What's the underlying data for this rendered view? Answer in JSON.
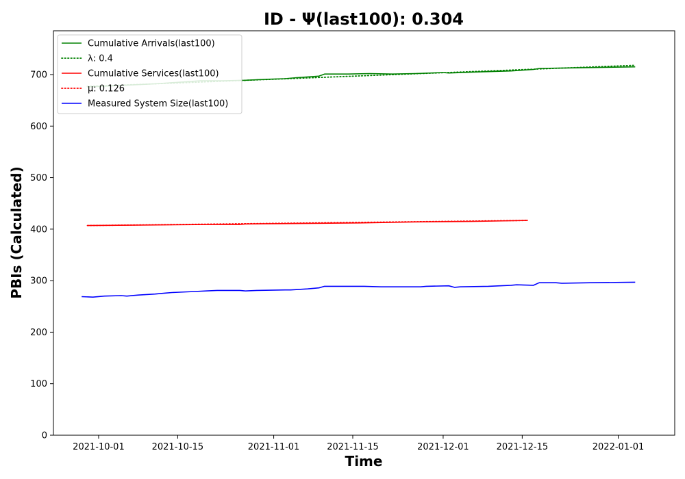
{
  "chart_data": {
    "type": "line",
    "title": "ID -  Ψ(last100): 0.304",
    "xlabel": "Time",
    "ylabel": "PBIs (Calculated)",
    "xlim": [
      "2021-09-23",
      "2022-01-11"
    ],
    "ylim": [
      0,
      785
    ],
    "x_ticks": [
      "2021-10-01",
      "2021-10-15",
      "2021-11-01",
      "2021-11-15",
      "2021-12-01",
      "2021-12-15",
      "2022-01-01"
    ],
    "y_ticks": [
      0,
      100,
      200,
      300,
      400,
      500,
      600,
      700
    ],
    "grid": false,
    "legend_position": "top-left",
    "series": [
      {
        "name": "Cumulative Arrivals(last100)",
        "color": "#008000",
        "style": "solid",
        "x": [
          "2021-09-29",
          "2021-10-03",
          "2021-10-07",
          "2021-10-11",
          "2021-10-15",
          "2021-10-19",
          "2021-10-23",
          "2021-10-27",
          "2021-10-31",
          "2021-11-03",
          "2021-11-05",
          "2021-11-09",
          "2021-11-10",
          "2021-11-14",
          "2021-11-18",
          "2021-11-22",
          "2021-11-26",
          "2021-12-01",
          "2021-12-02",
          "2021-12-07",
          "2021-12-13",
          "2021-12-17",
          "2021-12-18",
          "2021-12-24",
          "2022-01-04"
        ],
        "values": [
          676,
          678,
          680,
          682,
          685,
          688,
          688,
          689,
          691,
          692,
          694,
          697,
          701,
          701,
          702,
          701,
          702,
          704,
          703,
          705,
          707,
          710,
          712,
          713,
          715
        ]
      },
      {
        "name": "λ: 0.4",
        "color": "#008000",
        "style": "dotted",
        "x": [
          "2021-09-29",
          "2022-01-04"
        ],
        "values": [
          677,
          718
        ]
      },
      {
        "name": "Cumulative Services(last100)",
        "color": "#ff0000",
        "style": "solid",
        "x": [
          "2021-09-29",
          "2021-10-10",
          "2021-10-20",
          "2021-10-26",
          "2021-10-27",
          "2021-11-06",
          "2021-11-16",
          "2021-11-26",
          "2021-12-06",
          "2021-12-16"
        ],
        "values": [
          407,
          408,
          409,
          409,
          410,
          411,
          412,
          414,
          415,
          417
        ]
      },
      {
        "name": "μ: 0.126",
        "color": "#ff0000",
        "style": "dotted",
        "x": [
          "2021-09-29",
          "2021-12-16"
        ],
        "values": [
          407,
          417
        ]
      },
      {
        "name": "Measured System Size(last100)",
        "color": "#0000ff",
        "style": "solid",
        "x": [
          "2021-09-28",
          "2021-09-30",
          "2021-10-02",
          "2021-10-05",
          "2021-10-06",
          "2021-10-08",
          "2021-10-11",
          "2021-10-13",
          "2021-10-14",
          "2021-10-18",
          "2021-10-20",
          "2021-10-22",
          "2021-10-26",
          "2021-10-27",
          "2021-10-29",
          "2021-11-03",
          "2021-11-04",
          "2021-11-07",
          "2021-11-09",
          "2021-11-10",
          "2021-11-13",
          "2021-11-17",
          "2021-11-20",
          "2021-11-21",
          "2021-11-27",
          "2021-11-28",
          "2021-12-02",
          "2021-12-03",
          "2021-12-04",
          "2021-12-09",
          "2021-12-13",
          "2021-12-14",
          "2021-12-17",
          "2021-12-18",
          "2021-12-21",
          "2021-12-22",
          "2021-12-27",
          "2022-01-04"
        ],
        "values": [
          269,
          268,
          270,
          271,
          270,
          272,
          274,
          276,
          277,
          279,
          280,
          281,
          281,
          280,
          281,
          282,
          282,
          284,
          286,
          289,
          289,
          289,
          288,
          288,
          288,
          289,
          290,
          287,
          288,
          289,
          291,
          292,
          291,
          296,
          296,
          295,
          296,
          297
        ]
      }
    ]
  }
}
